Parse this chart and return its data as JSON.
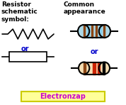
{
  "bg_color": "#ffffff",
  "title_left": "Resistor\nschematic\nsymbol:",
  "title_right": "Common\nappearance",
  "title_fontsize": 6.5,
  "or_color": "#0000cc",
  "or_fontsize": 7,
  "brand_text": "Electronzap",
  "brand_color": "#cc00cc",
  "brand_bg": "#ffff99",
  "brand_border": "#cccc00",
  "brand_fontsize": 7,
  "zigzag_color": "#000000",
  "r1_body_color": "#add8e6",
  "r1_bands": [
    "#8B4513",
    "#add8e6",
    "#8B4513",
    "#8B4513",
    "#add8e6",
    "#8B4513"
  ],
  "r2_body_color": "#f5deb3",
  "r2_bands": [
    "#8B4513",
    "#f5deb3",
    "#cc0000",
    "#000000",
    "#f5deb3"
  ]
}
